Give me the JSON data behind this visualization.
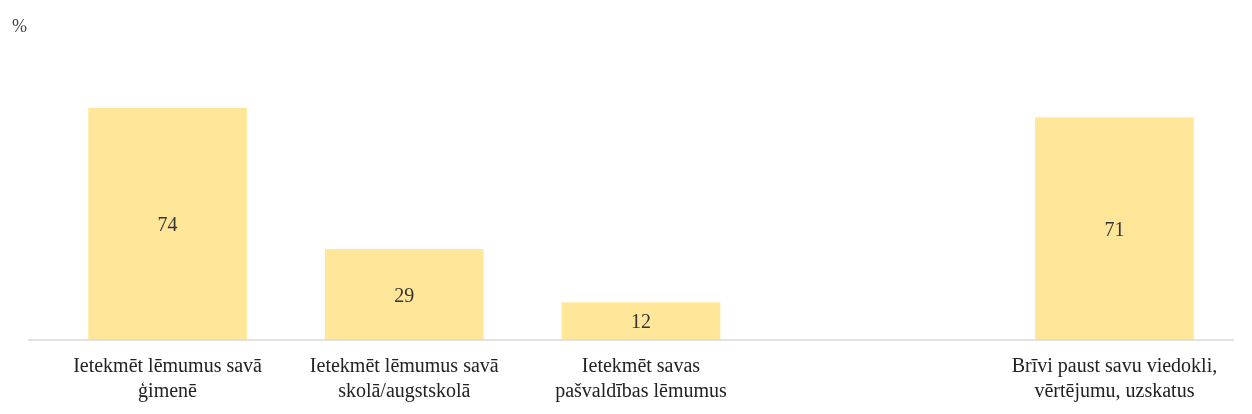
{
  "chart_data": {
    "type": "bar",
    "ylabel": "%",
    "categories": [
      "Ietekmēt lēmumus savā\nģimenē",
      "Ietekmēt lēmumus savā\nskolā/augstskolā",
      "Ietekmēt savas\npašvaldības lēmumus",
      null,
      "Brīvi paust savu viedokli,\nvērtējumu, uzskatus"
    ],
    "values": [
      74,
      29,
      12,
      null,
      71
    ],
    "color": "#ffe699",
    "data_labels": true
  }
}
